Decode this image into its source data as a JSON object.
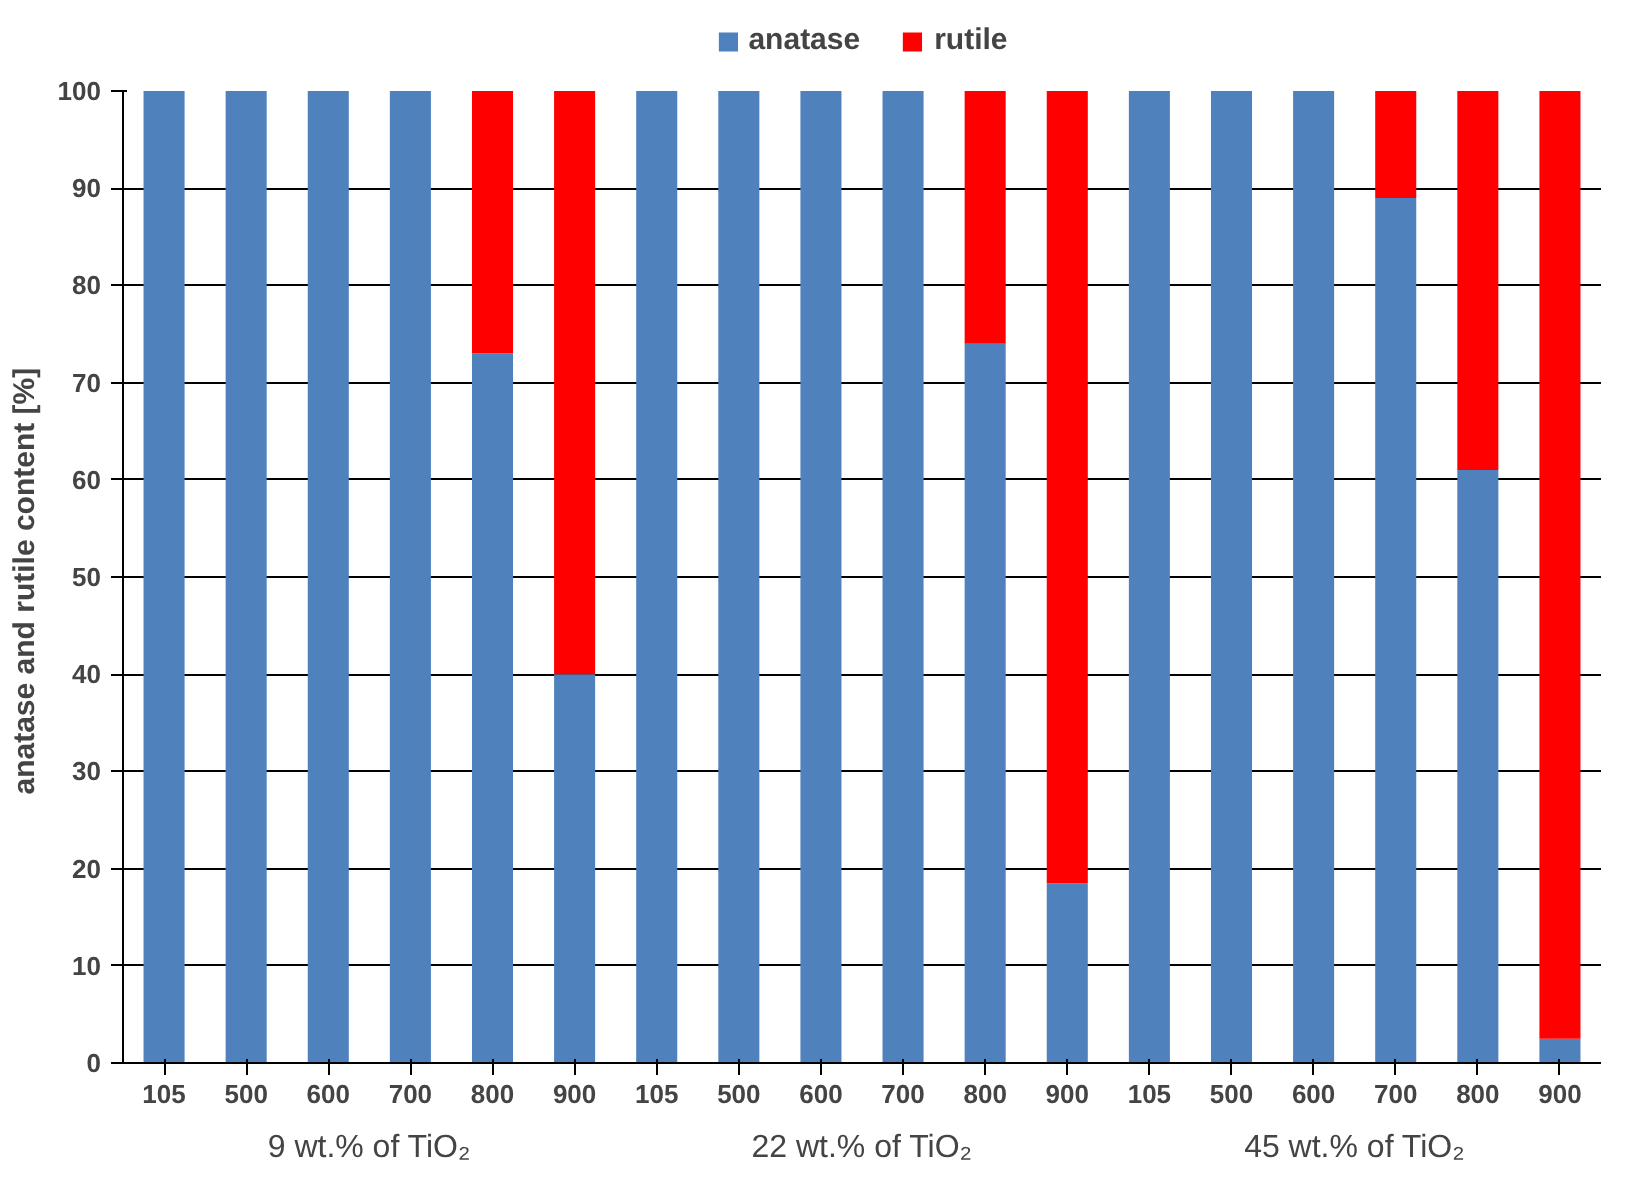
{
  "chart_data": {
    "type": "bar",
    "stacked": true,
    "ylabel": "anatase and rutile content  [%]",
    "categories": [
      "105",
      "500",
      "600",
      "700",
      "800",
      "900",
      "105",
      "500",
      "600",
      "700",
      "800",
      "900",
      "105",
      "500",
      "600",
      "700",
      "800",
      "900"
    ],
    "series": [
      {
        "name": "anatase",
        "color": "#4f81bd",
        "values": [
          100,
          100,
          100,
          100,
          73,
          40,
          100,
          100,
          100,
          100,
          74,
          18.5,
          100,
          100,
          100,
          89,
          61,
          2.5
        ]
      },
      {
        "name": "rutile",
        "color": "#ff0000",
        "values": [
          0,
          0,
          0,
          0,
          27,
          60,
          0,
          0,
          0,
          0,
          26,
          81.5,
          0,
          0,
          0,
          11,
          39,
          97.5
        ]
      }
    ],
    "ylim": [
      0,
      100
    ],
    "yticks": [
      0,
      10,
      20,
      30,
      40,
      50,
      60,
      70,
      80,
      90,
      100
    ],
    "grid": "y",
    "legend": "top",
    "annotations": [
      "9 wt.% of TiO₂",
      "22 wt.% of TiO₂",
      "45 wt.% of TiO₂"
    ]
  }
}
